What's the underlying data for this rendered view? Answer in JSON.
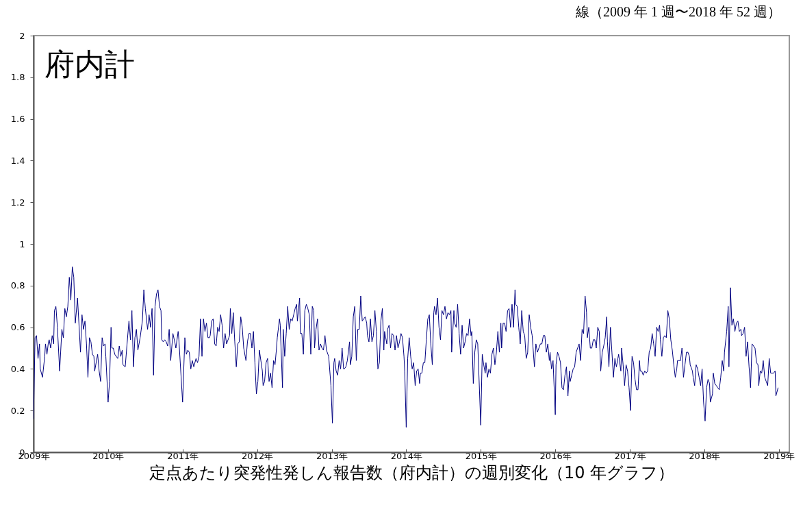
{
  "chart_data": {
    "type": "line",
    "subtitle": "線（2009 年 1 週〜2018 年 52 週）",
    "xlabel": "定点あたり突発性発しん報告数（府内計）の週別変化（10 年グラフ）",
    "annotations": [
      "府内計"
    ],
    "xlim": [
      2009,
      2019.14
    ],
    "ylim": [
      0,
      2
    ],
    "xticks": [
      {
        "value": 2009,
        "label": "2009年"
      },
      {
        "value": 2010,
        "label": "2010年"
      },
      {
        "value": 2011,
        "label": "2011年"
      },
      {
        "value": 2012,
        "label": "2012年"
      },
      {
        "value": 2013,
        "label": "2013年"
      },
      {
        "value": 2014,
        "label": "2014年"
      },
      {
        "value": 2015,
        "label": "2015年"
      },
      {
        "value": 2016,
        "label": "2016年"
      },
      {
        "value": 2017,
        "label": "2017年"
      },
      {
        "value": 2018,
        "label": "2018年"
      },
      {
        "value": 2019,
        "label": "2019年"
      }
    ],
    "yticks": [
      0,
      0.2,
      0.4,
      0.6,
      0.8,
      1,
      1.2,
      1.4,
      1.6,
      1.8,
      2
    ],
    "x": [
      2009.0,
      2009.02,
      2009.04,
      2009.06,
      2009.08,
      2009.09,
      2009.12,
      2009.15,
      2009.16,
      2009.18,
      2009.2,
      2009.21,
      2009.23,
      2009.25,
      2009.27,
      2009.28,
      2009.3,
      2009.32,
      2009.35,
      2009.38,
      2009.4,
      2009.42,
      2009.44,
      2009.46,
      2009.48,
      2009.5,
      2009.52,
      2009.54,
      2009.56,
      2009.59,
      2009.63,
      2009.65,
      2009.67,
      2009.69,
      2009.71,
      2009.73,
      2009.75,
      2009.77,
      2009.79,
      2009.81,
      2009.82,
      2009.86,
      2009.88,
      2009.9,
      2009.92,
      2009.94,
      2009.96,
      2009.97,
      2010.0,
      2010.02,
      2010.04,
      2010.05,
      2010.07,
      2010.09,
      2010.13,
      2010.15,
      2010.17,
      2010.19,
      2010.2,
      2010.23,
      2010.25,
      2010.28,
      2010.3,
      2010.32,
      2010.34,
      2010.36,
      2010.38,
      2010.4,
      2010.43,
      2010.46,
      2010.48,
      2010.5,
      2010.53,
      2010.55,
      2010.57,
      2010.59,
      2010.61,
      2010.63,
      2010.65,
      2010.67,
      2010.69,
      2010.71,
      2010.72,
      2010.74,
      2010.76,
      2010.78,
      2010.8,
      2010.82,
      2010.84,
      2010.87,
      2010.9,
      2010.91,
      2010.94,
      2010.95,
      2011.0,
      2011.03,
      2011.05,
      2011.07,
      2011.09,
      2011.11,
      2011.13,
      2011.15,
      2011.18,
      2011.2,
      2011.22,
      2011.24,
      2011.26,
      2011.28,
      2011.3,
      2011.32,
      2011.34,
      2011.36,
      2011.37,
      2011.39,
      2011.41,
      2011.43,
      2011.45,
      2011.47,
      2011.49,
      2011.51,
      2011.53,
      2011.55,
      2011.57,
      2011.59,
      2011.6,
      2011.63,
      2011.64,
      2011.66,
      2011.68,
      2011.7,
      2011.72,
      2011.74,
      2011.76,
      2011.78,
      2011.8,
      2011.82,
      2011.84,
      2011.85,
      2011.87,
      2011.89,
      2011.91,
      2011.93,
      2011.95,
      2011.97,
      2011.99,
      2012.01,
      2012.03,
      2012.05,
      2012.07,
      2012.08,
      2012.1,
      2012.12,
      2012.14,
      2012.16,
      2012.18,
      2012.2,
      2012.22,
      2012.24,
      2012.26,
      2012.27,
      2012.3,
      2012.31,
      2012.34,
      2012.35,
      2012.37,
      2012.39,
      2012.41,
      2012.43,
      2012.45,
      2012.47,
      2012.49,
      2012.51,
      2012.53,
      2012.54,
      2012.57,
      2012.58,
      2012.6,
      2012.62,
      2012.64,
      2012.66,
      2012.68,
      2012.7,
      2012.72,
      2012.74,
      2012.76,
      2012.77,
      2012.79,
      2012.81,
      2012.83,
      2012.85,
      2012.87,
      2012.89,
      2012.91,
      2012.93,
      2012.95,
      2012.96,
      2012.99,
      2013.01,
      2013.03,
      2013.04,
      2013.06,
      2013.08,
      2013.1,
      2013.12,
      2013.14,
      2013.16,
      2013.17,
      2013.19,
      2013.21,
      2013.24,
      2013.25,
      2013.27,
      2013.29,
      2013.31,
      2013.33,
      2013.35,
      2013.37,
      2013.39,
      2013.41,
      2013.43,
      2013.45,
      2013.47,
      2013.48,
      2013.5,
      2013.52,
      2013.54,
      2013.56,
      2013.58,
      2013.6,
      2013.62,
      2013.64,
      2013.66,
      2013.68,
      2013.7,
      2013.71,
      2013.74,
      2013.75,
      2013.77,
      2013.79,
      2013.81,
      2013.83,
      2013.85,
      2013.87,
      2013.89,
      2013.91,
      2013.93,
      2013.95,
      2013.97,
      2013.98,
      2014.0,
      2014.02,
      2014.04,
      2014.06,
      2014.08,
      2014.1,
      2014.12,
      2014.14,
      2014.16,
      2014.18,
      2014.19,
      2014.21,
      2014.23,
      2014.25,
      2014.27,
      2014.29,
      2014.31,
      2014.33,
      2014.35,
      2014.37,
      2014.38,
      2014.4,
      2014.42,
      2014.44,
      2014.46,
      2014.48,
      2014.5,
      2014.52,
      2014.54,
      2014.56,
      2014.58,
      2014.6,
      2014.61,
      2014.64,
      2014.65,
      2014.67,
      2014.69,
      2014.71,
      2014.73,
      2014.75,
      2014.77,
      2014.79,
      2014.81,
      2014.83,
      2014.85,
      2014.87,
      2014.88,
      2014.9,
      2014.92,
      2014.94,
      2014.96,
      2015.0,
      2015.02,
      2015.04,
      2015.06,
      2015.07,
      2015.09,
      2015.11,
      2015.13,
      2015.15,
      2015.17,
      2015.19,
      2015.21,
      2015.23,
      2015.25,
      2015.27,
      2015.28,
      2015.3,
      2015.32,
      2015.34,
      2015.36,
      2015.38,
      2015.4,
      2015.42,
      2015.44,
      2015.46,
      2015.47,
      2015.49,
      2015.51,
      2015.53,
      2015.55,
      2015.57,
      2015.59,
      2015.61,
      2015.63,
      2015.65,
      2015.67,
      2015.69,
      2015.7,
      2015.72,
      2015.74,
      2015.76,
      2015.78,
      2015.8,
      2015.82,
      2015.84,
      2015.86,
      2015.88,
      2015.9,
      2015.92,
      2015.93,
      2015.95,
      2015.97,
      2016.0,
      2016.01,
      2016.03,
      2016.05,
      2016.07,
      2016.09,
      2016.11,
      2016.13,
      2016.15,
      2016.17,
      2016.19,
      2016.2,
      2016.22,
      2016.24,
      2016.26,
      2016.28,
      2016.3,
      2016.32,
      2016.34,
      2016.36,
      2016.38,
      2016.4,
      2016.42,
      2016.43,
      2016.45,
      2016.47,
      2016.49,
      2016.51,
      2016.53,
      2016.55,
      2016.57,
      2016.59,
      2016.61,
      2016.63,
      2016.65,
      2016.67,
      2016.69,
      2016.7,
      2016.72,
      2016.74,
      2016.76,
      2016.78,
      2016.8,
      2016.82,
      2016.84,
      2016.85,
      2016.88,
      2016.89,
      2016.91,
      2016.93,
      2016.95,
      2016.97,
      2016.99,
      2017.01,
      2017.03,
      2017.05,
      2017.07,
      2017.09,
      2017.11,
      2017.13,
      2017.14,
      2017.16,
      2017.18,
      2017.2,
      2017.22,
      2017.24,
      2017.26,
      2017.28,
      2017.3,
      2017.32,
      2017.34,
      2017.36,
      2017.38,
      2017.4,
      2017.41,
      2017.43,
      2017.45,
      2017.47,
      2017.49,
      2017.51,
      2017.53,
      2017.55,
      2017.57,
      2017.59,
      2017.61,
      2017.63,
      2017.64,
      2017.66,
      2017.68,
      2017.7,
      2017.72,
      2017.74,
      2017.76,
      2017.78,
      2017.8,
      2017.81,
      2017.84,
      2017.85,
      2017.87,
      2017.89,
      2017.91,
      2017.93,
      2017.95,
      2017.97,
      2017.99,
      2018.01,
      2018.03,
      2018.05,
      2018.07,
      2018.08,
      2018.11,
      2018.12,
      2018.14,
      2018.16,
      2018.18,
      2018.2,
      2018.22,
      2018.24,
      2018.26,
      2018.27,
      2018.3,
      2018.32,
      2018.33,
      2018.35,
      2018.37,
      2018.39,
      2018.41,
      2018.43,
      2018.45,
      2018.47,
      2018.49,
      2018.5,
      2018.52,
      2018.54,
      2018.56,
      2018.58,
      2018.6,
      2018.62,
      2018.64,
      2018.66,
      2018.68,
      2018.7,
      2018.72,
      2018.73,
      2018.75,
      2018.77,
      2018.79,
      2018.81,
      2018.83,
      2018.85,
      2018.87,
      2018.89,
      2018.91,
      2018.93,
      2018.95,
      2018.96,
      2018.99
    ],
    "series": [
      {
        "color": "#000080",
        "values": [
          0.16,
          0.55,
          0.56,
          0.45,
          0.52,
          0.4,
          0.36,
          0.46,
          0.52,
          0.47,
          0.53,
          0.54,
          0.5,
          0.56,
          0.52,
          0.68,
          0.7,
          0.6,
          0.39,
          0.59,
          0.55,
          0.69,
          0.65,
          0.7,
          0.84,
          0.73,
          0.89,
          0.84,
          0.62,
          0.74,
          0.48,
          0.66,
          0.59,
          0.63,
          0.52,
          0.36,
          0.55,
          0.53,
          0.47,
          0.46,
          0.39,
          0.47,
          0.39,
          0.34,
          0.55,
          0.51,
          0.52,
          0.46,
          0.24,
          0.34,
          0.6,
          0.5,
          0.5,
          0.47,
          0.45,
          0.51,
          0.46,
          0.49,
          0.42,
          0.41,
          0.5,
          0.63,
          0.54,
          0.68,
          0.41,
          0.55,
          0.59,
          0.49,
          0.55,
          0.63,
          0.78,
          0.69,
          0.59,
          0.66,
          0.6,
          0.69,
          0.37,
          0.7,
          0.76,
          0.78,
          0.7,
          0.68,
          0.54,
          0.53,
          0.54,
          0.53,
          0.51,
          0.59,
          0.44,
          0.57,
          0.52,
          0.5,
          0.58,
          0.54,
          0.24,
          0.55,
          0.47,
          0.49,
          0.48,
          0.4,
          0.44,
          0.41,
          0.45,
          0.43,
          0.46,
          0.64,
          0.46,
          0.64,
          0.58,
          0.62,
          0.55,
          0.55,
          0.56,
          0.63,
          0.64,
          0.52,
          0.51,
          0.6,
          0.58,
          0.66,
          0.61,
          0.5,
          0.57,
          0.52,
          0.53,
          0.56,
          0.69,
          0.57,
          0.67,
          0.53,
          0.41,
          0.52,
          0.53,
          0.65,
          0.6,
          0.5,
          0.46,
          0.44,
          0.53,
          0.57,
          0.57,
          0.5,
          0.58,
          0.43,
          0.28,
          0.34,
          0.49,
          0.44,
          0.39,
          0.32,
          0.34,
          0.43,
          0.45,
          0.34,
          0.38,
          0.31,
          0.44,
          0.42,
          0.5,
          0.55,
          0.64,
          0.61,
          0.31,
          0.59,
          0.46,
          0.57,
          0.7,
          0.59,
          0.64,
          0.63,
          0.66,
          0.69,
          0.71,
          0.63,
          0.74,
          0.57,
          0.57,
          0.47,
          0.68,
          0.71,
          0.69,
          0.66,
          0.47,
          0.7,
          0.68,
          0.5,
          0.59,
          0.64,
          0.49,
          0.52,
          0.5,
          0.49,
          0.56,
          0.49,
          0.47,
          0.46,
          0.32,
          0.14,
          0.43,
          0.45,
          0.39,
          0.37,
          0.44,
          0.4,
          0.5,
          0.4,
          0.4,
          0.41,
          0.44,
          0.53,
          0.42,
          0.46,
          0.65,
          0.7,
          0.44,
          0.59,
          0.59,
          0.75,
          0.63,
          0.64,
          0.65,
          0.62,
          0.56,
          0.53,
          0.64,
          0.53,
          0.56,
          0.68,
          0.58,
          0.4,
          0.43,
          0.63,
          0.69,
          0.49,
          0.58,
          0.52,
          0.59,
          0.61,
          0.5,
          0.57,
          0.56,
          0.49,
          0.56,
          0.5,
          0.53,
          0.57,
          0.55,
          0.46,
          0.39,
          0.12,
          0.45,
          0.55,
          0.46,
          0.4,
          0.43,
          0.32,
          0.39,
          0.4,
          0.33,
          0.38,
          0.38,
          0.43,
          0.43,
          0.54,
          0.64,
          0.66,
          0.52,
          0.42,
          0.67,
          0.7,
          0.66,
          0.74,
          0.6,
          0.54,
          0.68,
          0.66,
          0.7,
          0.64,
          0.67,
          0.66,
          0.68,
          0.48,
          0.68,
          0.62,
          0.6,
          0.71,
          0.57,
          0.47,
          0.61,
          0.5,
          0.53,
          0.57,
          0.56,
          0.64,
          0.56,
          0.58,
          0.33,
          0.48,
          0.54,
          0.52,
          0.13,
          0.47,
          0.42,
          0.38,
          0.43,
          0.36,
          0.4,
          0.38,
          0.47,
          0.5,
          0.42,
          0.48,
          0.58,
          0.48,
          0.62,
          0.5,
          0.62,
          0.62,
          0.58,
          0.68,
          0.69,
          0.6,
          0.71,
          0.6,
          0.78,
          0.71,
          0.7,
          0.6,
          0.52,
          0.68,
          0.58,
          0.56,
          0.45,
          0.48,
          0.66,
          0.6,
          0.56,
          0.51,
          0.41,
          0.52,
          0.48,
          0.5,
          0.52,
          0.52,
          0.56,
          0.56,
          0.48,
          0.52,
          0.44,
          0.48,
          0.4,
          0.44,
          0.18,
          0.42,
          0.48,
          0.46,
          0.43,
          0.31,
          0.3,
          0.37,
          0.41,
          0.27,
          0.39,
          0.34,
          0.37,
          0.4,
          0.41,
          0.48,
          0.5,
          0.52,
          0.44,
          0.59,
          0.57,
          0.75,
          0.67,
          0.55,
          0.6,
          0.5,
          0.5,
          0.54,
          0.54,
          0.5,
          0.6,
          0.58,
          0.39,
          0.48,
          0.51,
          0.55,
          0.65,
          0.53,
          0.41,
          0.6,
          0.48,
          0.36,
          0.45,
          0.41,
          0.45,
          0.47,
          0.39,
          0.5,
          0.42,
          0.32,
          0.42,
          0.39,
          0.31,
          0.2,
          0.46,
          0.43,
          0.35,
          0.3,
          0.3,
          0.44,
          0.39,
          0.39,
          0.37,
          0.39,
          0.38,
          0.39,
          0.48,
          0.5,
          0.57,
          0.52,
          0.46,
          0.6,
          0.58,
          0.61,
          0.54,
          0.46,
          0.55,
          0.56,
          0.55,
          0.68,
          0.64,
          0.54,
          0.49,
          0.42,
          0.36,
          0.4,
          0.44,
          0.44,
          0.44,
          0.5,
          0.36,
          0.42,
          0.48,
          0.48,
          0.46,
          0.42,
          0.39,
          0.36,
          0.32,
          0.42,
          0.4,
          0.36,
          0.32,
          0.4,
          0.24,
          0.15,
          0.31,
          0.35,
          0.33,
          0.24,
          0.28,
          0.38,
          0.33,
          0.32,
          0.31,
          0.3,
          0.36,
          0.44,
          0.39,
          0.48,
          0.58,
          0.7,
          0.41,
          0.79,
          0.61,
          0.64,
          0.58,
          0.62,
          0.63,
          0.58,
          0.59,
          0.56,
          0.57,
          0.6,
          0.46,
          0.53,
          0.41,
          0.31,
          0.52,
          0.51,
          0.5,
          0.43,
          0.42,
          0.32,
          0.39,
          0.38,
          0.44,
          0.36,
          0.34,
          0.32,
          0.45,
          0.38,
          0.38,
          0.38,
          0.39,
          0.27,
          0.31
        ]
      }
    ]
  }
}
